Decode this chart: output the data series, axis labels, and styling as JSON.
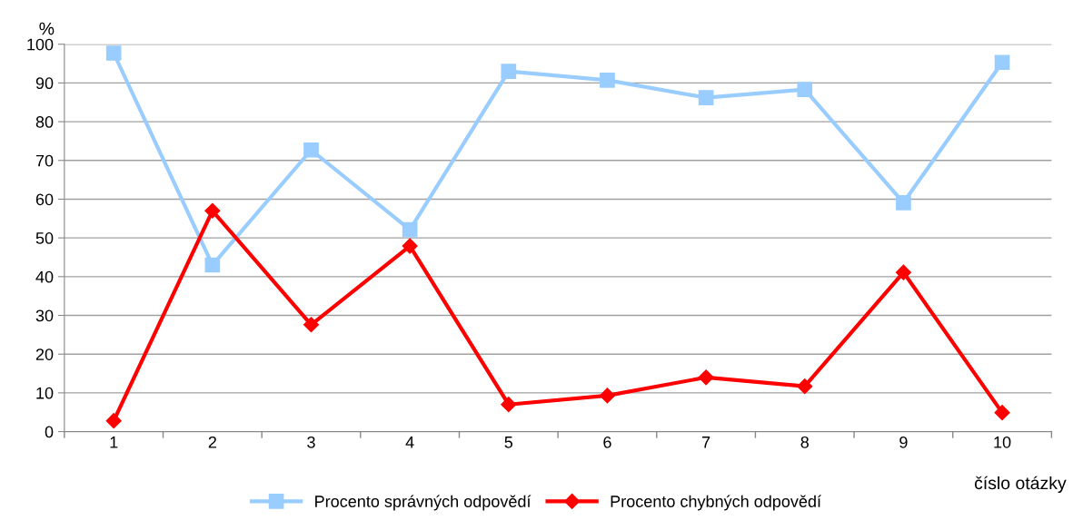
{
  "chart_data": {
    "type": "line",
    "xlabel": "číslo otázky",
    "ylabel": "%",
    "categories": [
      "1",
      "2",
      "3",
      "4",
      "5",
      "6",
      "7",
      "8",
      "9",
      "10"
    ],
    "series": [
      {
        "name": "Procento správných odpovědí",
        "color": "#99ccff",
        "marker": "square",
        "values": [
          97.7,
          43.0,
          72.7,
          52.1,
          93.0,
          90.7,
          86.2,
          88.3,
          59.1,
          95.3
        ]
      },
      {
        "name": "Procento chybných odpovědí",
        "color": "#ff0000",
        "marker": "diamond",
        "values": [
          2.8,
          57.0,
          27.6,
          47.9,
          7.0,
          9.3,
          14.0,
          11.7,
          41.1,
          4.9
        ]
      }
    ],
    "ylim": [
      0,
      100
    ],
    "yticks": [
      0,
      10,
      20,
      30,
      40,
      50,
      60,
      70,
      80,
      90,
      100
    ],
    "grid": "y",
    "legend": "bottom",
    "line_style": "solid"
  }
}
